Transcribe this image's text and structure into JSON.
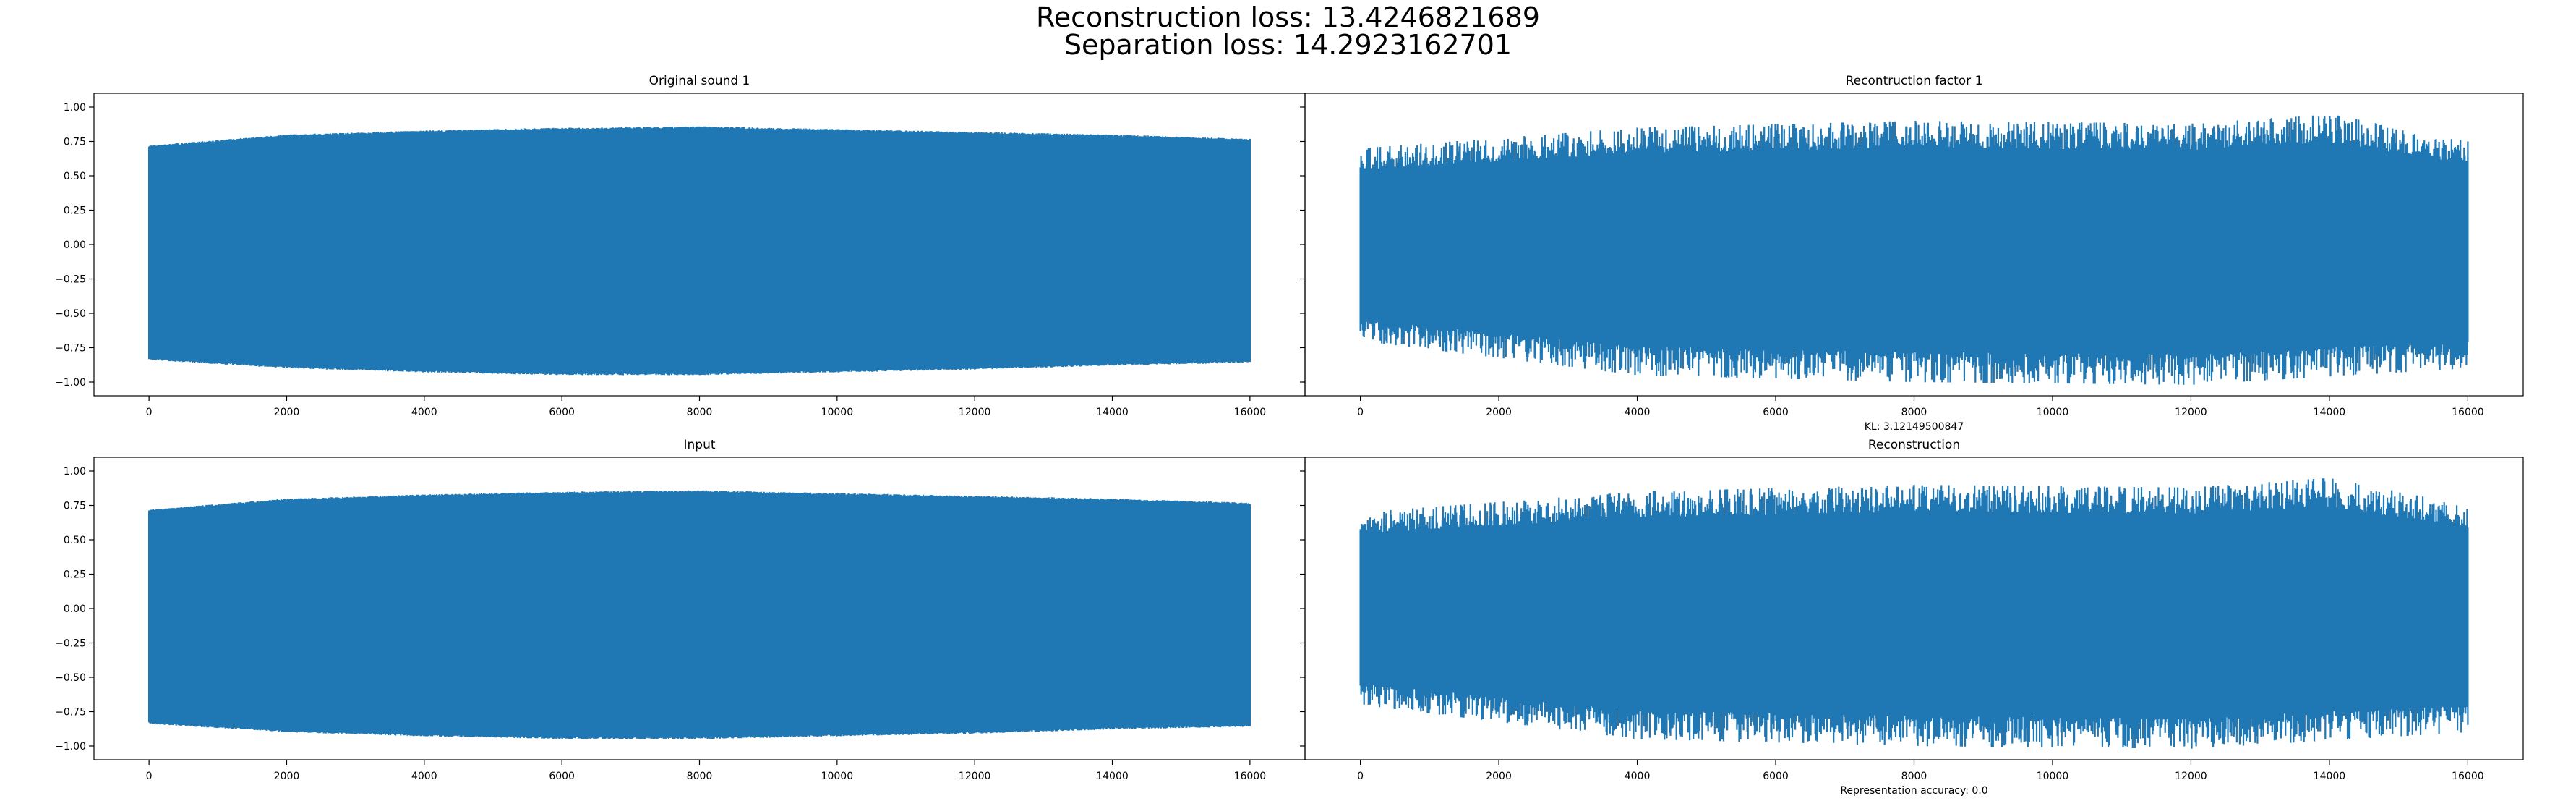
{
  "figure": {
    "suptitle_line1": "Reconstruction loss: 13.4246821689",
    "suptitle_line2": "Separation loss: 14.2923162701",
    "line_color": "#1f77b4"
  },
  "chart_data": [
    {
      "id": "top-left",
      "type": "line",
      "title": "Original sound 1",
      "xlabel": "",
      "ylabel": "",
      "xlim": [
        -800,
        16800
      ],
      "ylim": [
        -1.1,
        1.1
      ],
      "xticks": [
        0,
        2000,
        4000,
        6000,
        8000,
        10000,
        12000,
        14000,
        16000
      ],
      "yticks": [
        -1.0,
        -0.75,
        -0.5,
        -0.25,
        0.0,
        0.25,
        0.5,
        0.75,
        1.0
      ],
      "yticklabels": [
        "−1.00",
        "−0.75",
        "−0.50",
        "−0.25",
        "0.00",
        "0.25",
        "0.50",
        "0.75",
        "1.00"
      ],
      "show_yticklabels": true,
      "grid": false,
      "series": [
        {
          "x_range": [
            0,
            16000
          ],
          "signal": "periodic tone",
          "max_envelope": [
            [
              0,
              0.72
            ],
            [
              2000,
              0.8
            ],
            [
              4000,
              0.83
            ],
            [
              6000,
              0.85
            ],
            [
              8000,
              0.86
            ],
            [
              10000,
              0.84
            ],
            [
              12000,
              0.82
            ],
            [
              14000,
              0.8
            ],
            [
              16000,
              0.77
            ]
          ],
          "min_envelope": [
            [
              0,
              -0.84
            ],
            [
              2000,
              -0.9
            ],
            [
              4000,
              -0.93
            ],
            [
              6000,
              -0.95
            ],
            [
              8000,
              -0.95
            ],
            [
              10000,
              -0.93
            ],
            [
              12000,
              -0.91
            ],
            [
              14000,
              -0.88
            ],
            [
              16000,
              -0.86
            ]
          ]
        }
      ]
    },
    {
      "id": "top-right",
      "type": "line",
      "title": "Recontruction factor 1",
      "xlabel": "KL: 3.12149500847",
      "ylabel": "",
      "xlim": [
        -800,
        16800
      ],
      "ylim": [
        -1.1,
        1.1
      ],
      "xticks": [
        0,
        2000,
        4000,
        6000,
        8000,
        10000,
        12000,
        14000,
        16000
      ],
      "yticks": [
        -1.0,
        -0.75,
        -0.5,
        -0.25,
        0.0,
        0.25,
        0.5,
        0.75,
        1.0
      ],
      "show_yticklabels": false,
      "grid": false,
      "series": [
        {
          "x_range": [
            0,
            16000
          ],
          "signal": "noisy reconstruction",
          "max_envelope": [
            [
              0,
              0.7
            ],
            [
              4000,
              0.85
            ],
            [
              8000,
              0.9
            ],
            [
              12000,
              0.88
            ],
            [
              14000,
              0.95
            ],
            [
              16000,
              0.75
            ]
          ],
          "min_envelope": [
            [
              0,
              -0.7
            ],
            [
              4000,
              -0.95
            ],
            [
              8000,
              -1.0
            ],
            [
              12000,
              -1.02
            ],
            [
              16000,
              -0.9
            ]
          ]
        }
      ]
    },
    {
      "id": "bottom-left",
      "type": "line",
      "title": "Input",
      "xlabel": "",
      "ylabel": "",
      "xlim": [
        -800,
        16800
      ],
      "ylim": [
        -1.1,
        1.1
      ],
      "xticks": [
        0,
        2000,
        4000,
        6000,
        8000,
        10000,
        12000,
        14000,
        16000
      ],
      "yticks": [
        -1.0,
        -0.75,
        -0.5,
        -0.25,
        0.0,
        0.25,
        0.5,
        0.75,
        1.0
      ],
      "yticklabels": [
        "−1.00",
        "−0.75",
        "−0.50",
        "−0.25",
        "0.00",
        "0.25",
        "0.50",
        "0.75",
        "1.00"
      ],
      "show_yticklabels": true,
      "grid": false,
      "series": [
        {
          "x_range": [
            0,
            16000
          ],
          "signal": "periodic tone",
          "max_envelope": [
            [
              0,
              0.72
            ],
            [
              2000,
              0.8
            ],
            [
              4000,
              0.83
            ],
            [
              6000,
              0.85
            ],
            [
              8000,
              0.86
            ],
            [
              10000,
              0.84
            ],
            [
              12000,
              0.82
            ],
            [
              14000,
              0.8
            ],
            [
              16000,
              0.77
            ]
          ],
          "min_envelope": [
            [
              0,
              -0.84
            ],
            [
              2000,
              -0.9
            ],
            [
              4000,
              -0.93
            ],
            [
              6000,
              -0.95
            ],
            [
              8000,
              -0.95
            ],
            [
              10000,
              -0.93
            ],
            [
              12000,
              -0.91
            ],
            [
              14000,
              -0.88
            ],
            [
              16000,
              -0.86
            ]
          ]
        }
      ]
    },
    {
      "id": "bottom-right",
      "type": "line",
      "title": "Reconstruction",
      "xlabel": "Representation accuracy: 0.0",
      "ylabel": "",
      "xlim": [
        -800,
        16800
      ],
      "ylim": [
        -1.1,
        1.1
      ],
      "xticks": [
        0,
        2000,
        4000,
        6000,
        8000,
        10000,
        12000,
        14000,
        16000
      ],
      "yticks": [
        -1.0,
        -0.75,
        -0.5,
        -0.25,
        0.0,
        0.25,
        0.5,
        0.75,
        1.0
      ],
      "show_yticklabels": false,
      "grid": false,
      "series": [
        {
          "x_range": [
            0,
            16000
          ],
          "signal": "noisy reconstruction",
          "max_envelope": [
            [
              0,
              0.7
            ],
            [
              4000,
              0.85
            ],
            [
              8000,
              0.9
            ],
            [
              12000,
              0.88
            ],
            [
              14000,
              0.95
            ],
            [
              16000,
              0.75
            ]
          ],
          "min_envelope": [
            [
              0,
              -0.7
            ],
            [
              4000,
              -0.95
            ],
            [
              8000,
              -1.0
            ],
            [
              12000,
              -1.02
            ],
            [
              16000,
              -0.9
            ]
          ]
        }
      ]
    }
  ]
}
